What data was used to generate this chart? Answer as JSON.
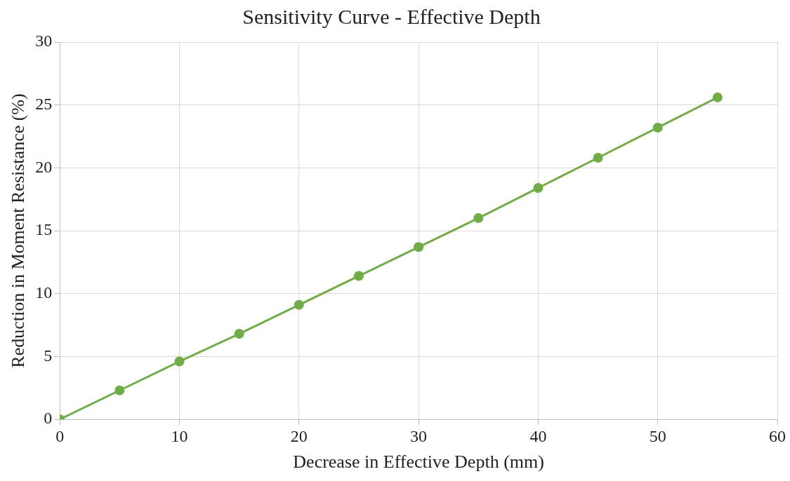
{
  "chart_data": {
    "type": "line",
    "title": "Sensitivity Curve - Effective Depth",
    "xlabel": "Decrease in Effective Depth (mm)",
    "ylabel": "Reduction in Moment Resistance (%)",
    "x": [
      0,
      5,
      10,
      15,
      20,
      25,
      30,
      35,
      40,
      45,
      50,
      55
    ],
    "series": [
      {
        "color": "#70ad47",
        "values": [
          0,
          2.3,
          4.6,
          6.8,
          9.1,
          11.4,
          13.7,
          16.0,
          18.4,
          20.8,
          23.2,
          25.6
        ]
      }
    ],
    "xlim": [
      0,
      60
    ],
    "xticks": [
      0,
      10,
      20,
      30,
      40,
      50,
      60
    ],
    "ylim": [
      0,
      30
    ],
    "yticks": [
      0,
      5,
      10,
      15,
      20,
      25,
      30
    ],
    "grid": true,
    "legend": false,
    "marker": "circle",
    "line_style": "solid"
  }
}
